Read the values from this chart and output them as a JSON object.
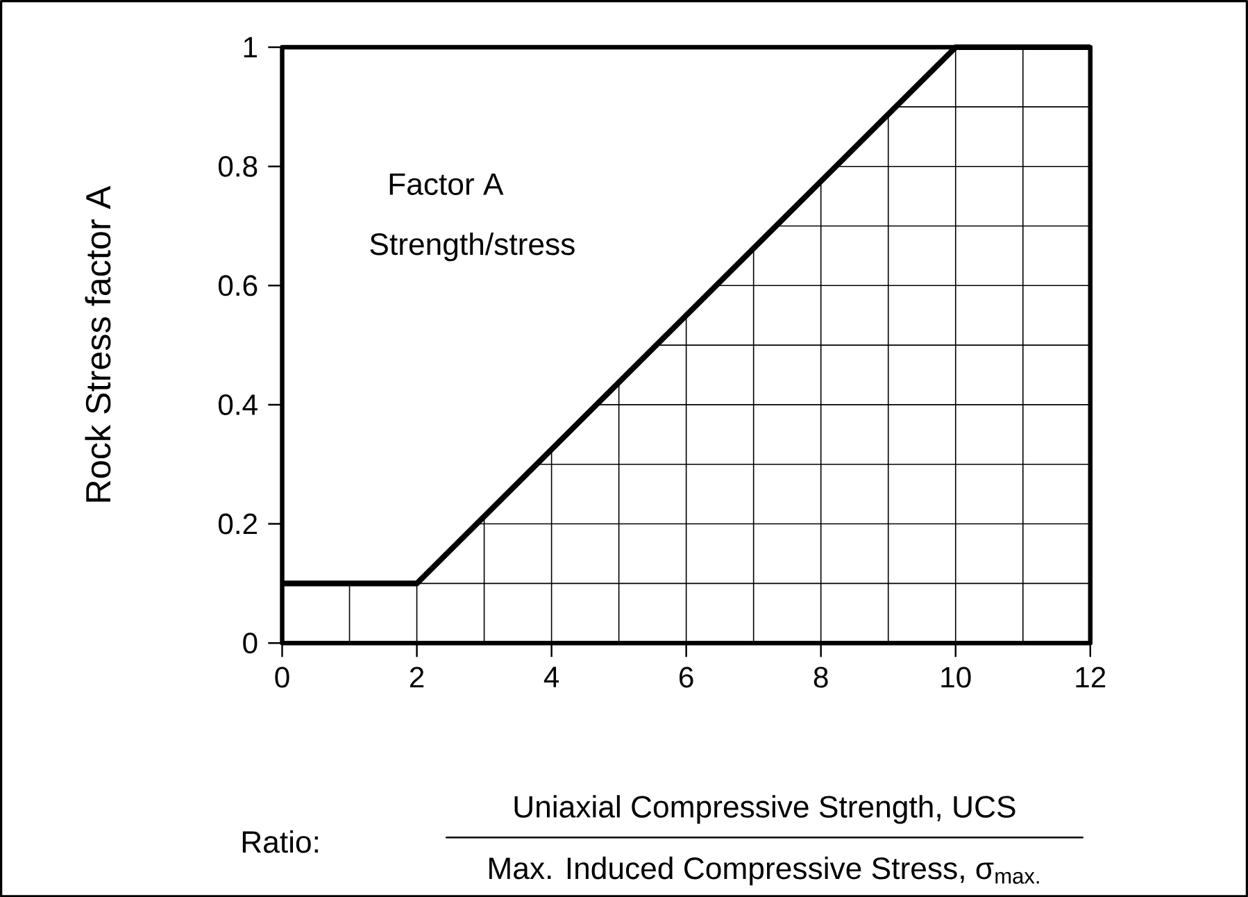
{
  "chart_data": {
    "type": "line",
    "ylabel": "Rock Stress factor A",
    "xlabel": "Ratio:",
    "annotations": [
      "Factor A",
      "Strength/stress",
      "Uniaxial Compressive Strength, UCS",
      "Max. Induced Compressive Stress, σ$_{max.}$"
    ],
    "x": [
      0,
      2,
      10,
      12
    ],
    "series": [
      {
        "color": "#000000",
        "values": [
          0.1,
          0.1,
          1,
          1
        ]
      }
    ],
    "xlim": [
      0,
      12
    ],
    "xticks": [
      0,
      2,
      4,
      6,
      8,
      10,
      12
    ],
    "ylim": [
      0,
      1
    ],
    "yticks": [
      0,
      0.2,
      0.4,
      0.6,
      0.8,
      1
    ],
    "grid": true,
    "line_style": "solid",
    "marker": "none"
  }
}
